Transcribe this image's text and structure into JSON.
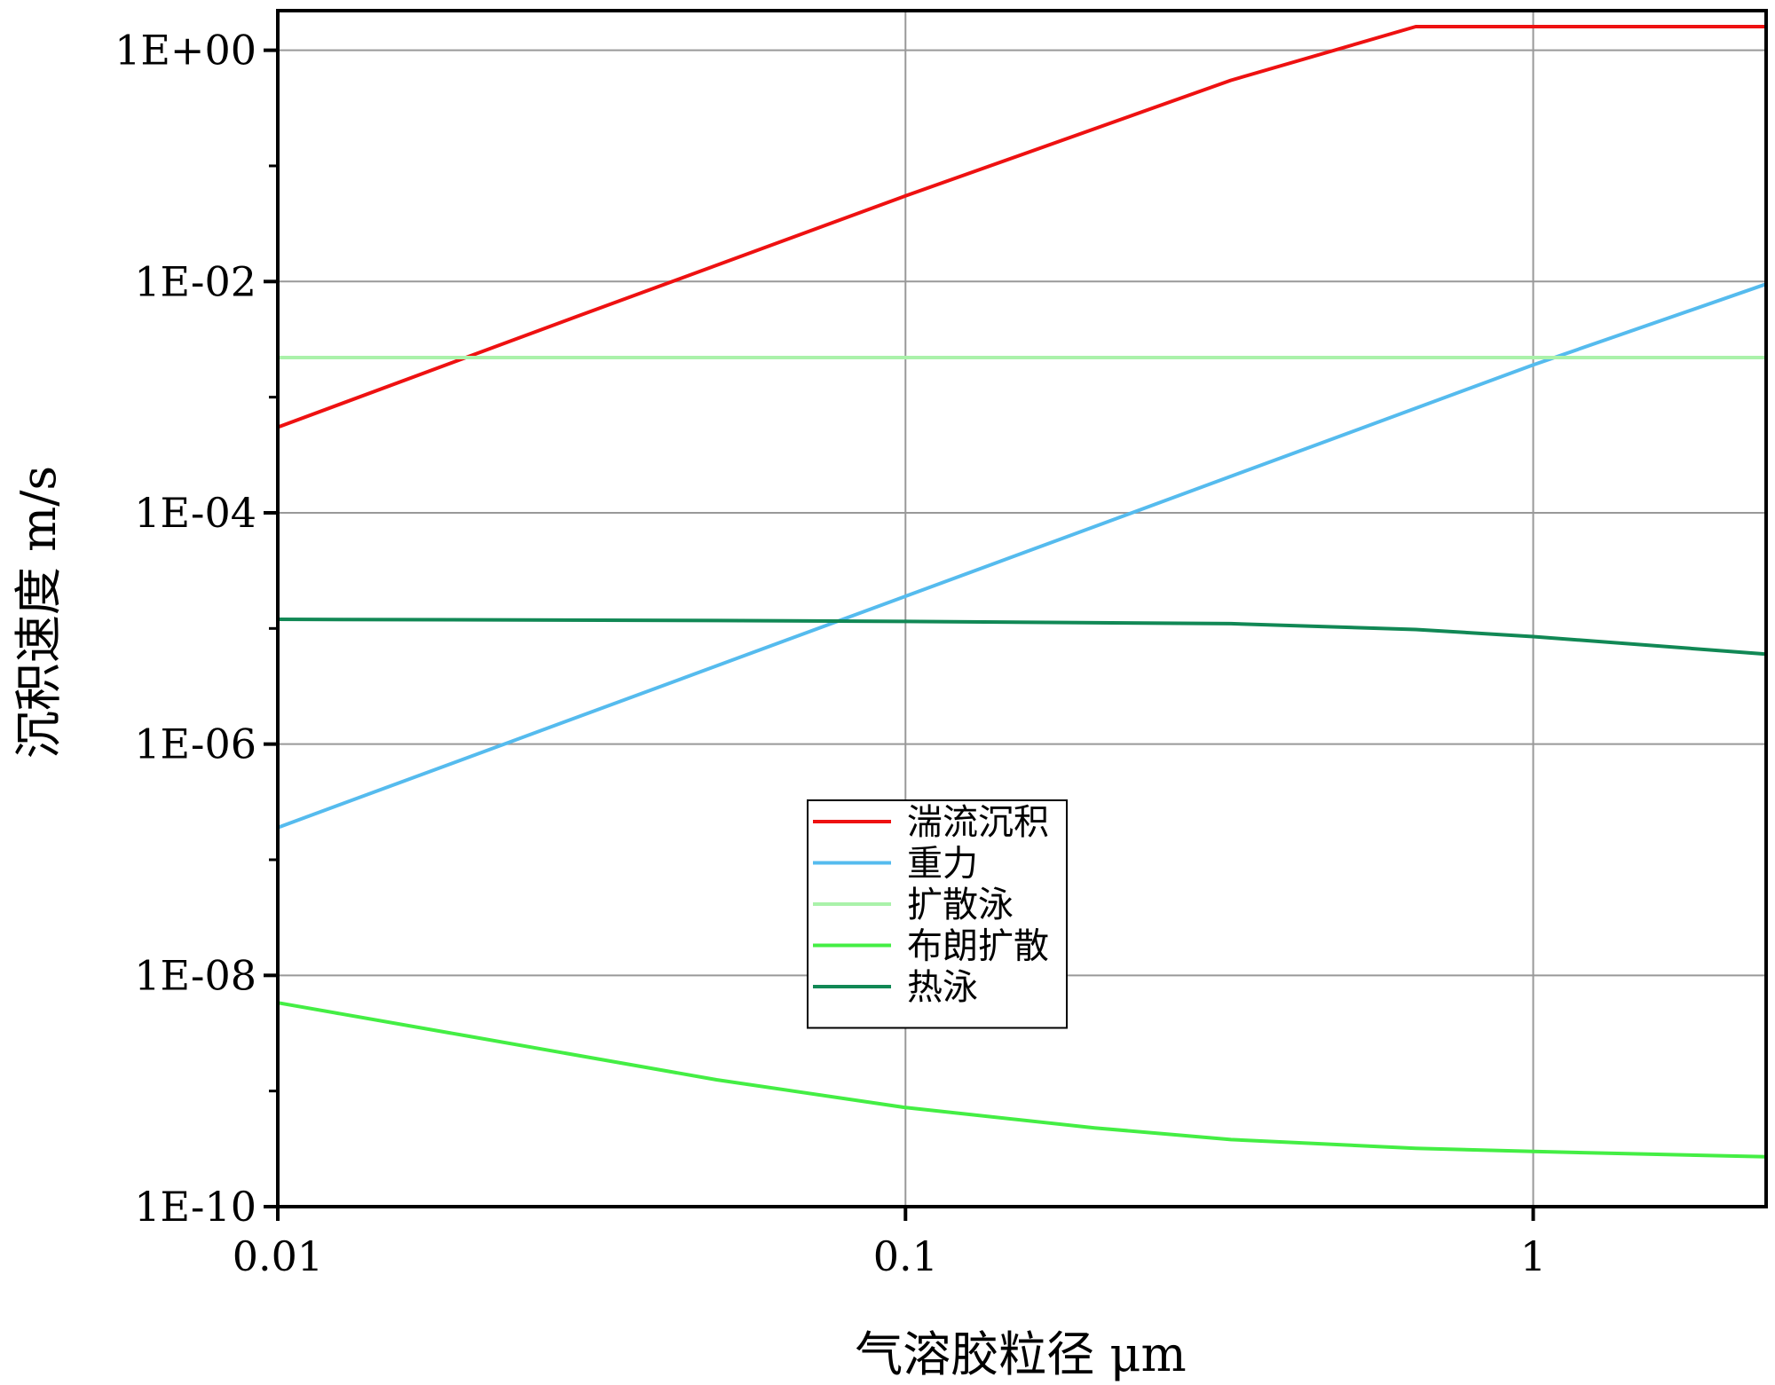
{
  "chart_data": {
    "type": "line",
    "xlabel": "气溶胶粒径  μm",
    "ylabel": "沉积速度 m/s",
    "x_scale": "log",
    "y_scale": "log",
    "xlim": [
      0.01,
      2.35
    ],
    "ylim": [
      1e-10,
      2.2
    ],
    "x_ticks": [
      {
        "value": 0.01,
        "label": "0.01"
      },
      {
        "value": 0.1,
        "label": "0.1"
      },
      {
        "value": 1,
        "label": "1"
      }
    ],
    "y_ticks": [
      {
        "value": 1.0,
        "label": "1E+00"
      },
      {
        "value": 0.01,
        "label": "1E-02"
      },
      {
        "value": 0.0001,
        "label": "1E-04"
      },
      {
        "value": 1e-06,
        "label": "1E-06"
      },
      {
        "value": 1e-08,
        "label": "1E-08"
      },
      {
        "value": 1e-10,
        "label": "1E-10"
      }
    ],
    "grid": true,
    "legend_position": "center",
    "series": [
      {
        "name": "湍流沉积",
        "color": "#ee1111",
        "x": [
          0.01,
          0.03,
          0.1,
          0.33,
          0.65,
          2.35
        ],
        "y": [
          0.00055,
          0.005,
          0.055,
          0.55,
          1.6,
          1.6
        ]
      },
      {
        "name": "重力",
        "color": "#55bbee",
        "x": [
          0.01,
          0.1,
          1,
          2.35
        ],
        "y": [
          1.9e-07,
          1.9e-05,
          0.0019,
          0.0095
        ]
      },
      {
        "name": "扩散泳",
        "color": "#aaf2aa",
        "x": [
          0.01,
          2.35
        ],
        "y": [
          0.0022,
          0.0022
        ]
      },
      {
        "name": "布朗扩散",
        "color": "#44ee44",
        "x": [
          0.01,
          0.02,
          0.05,
          0.1,
          0.2,
          0.33,
          0.65,
          1,
          2.35
        ],
        "y": [
          5.8e-09,
          3e-09,
          1.25e-09,
          7.2e-10,
          4.8e-10,
          3.8e-10,
          3.2e-10,
          3e-10,
          2.7e-10
        ]
      },
      {
        "name": "热泳",
        "color": "#118855",
        "x": [
          0.01,
          0.05,
          0.1,
          0.33,
          0.65,
          1,
          2.35
        ],
        "y": [
          1.2e-05,
          1.17e-05,
          1.15e-05,
          1.1e-05,
          9.8e-06,
          8.5e-06,
          6e-06
        ]
      }
    ]
  }
}
